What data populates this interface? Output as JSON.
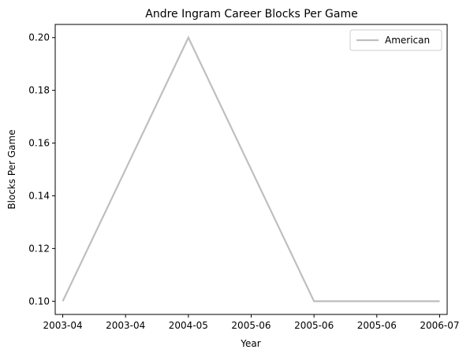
{
  "chart_data": {
    "type": "line",
    "title": "Andre Ingram Career Blocks Per Game",
    "xlabel": "Year",
    "ylabel": "Blocks Per Game",
    "x_tick_labels": [
      "2003-04",
      "2003-04",
      "2004-05",
      "2005-06",
      "2005-06",
      "2005-06",
      "2006-07"
    ],
    "x_range": [
      -0.06,
      3.06
    ],
    "ylim": [
      0.095,
      0.205
    ],
    "y_ticks": [
      0.1,
      0.12,
      0.14,
      0.16,
      0.18,
      0.2
    ],
    "y_tick_labels": [
      "0.10",
      "0.12",
      "0.14",
      "0.16",
      "0.18",
      "0.20"
    ],
    "grid": false,
    "legend_position": "top-right",
    "series": [
      {
        "name": "American",
        "color": "#bfbfbf",
        "x": [
          0,
          1,
          2,
          3
        ],
        "x_labels": [
          "2003-04",
          "2004-05",
          "2005-06",
          "2006-07"
        ],
        "values": [
          0.1,
          0.2,
          0.1,
          0.1
        ]
      }
    ]
  }
}
